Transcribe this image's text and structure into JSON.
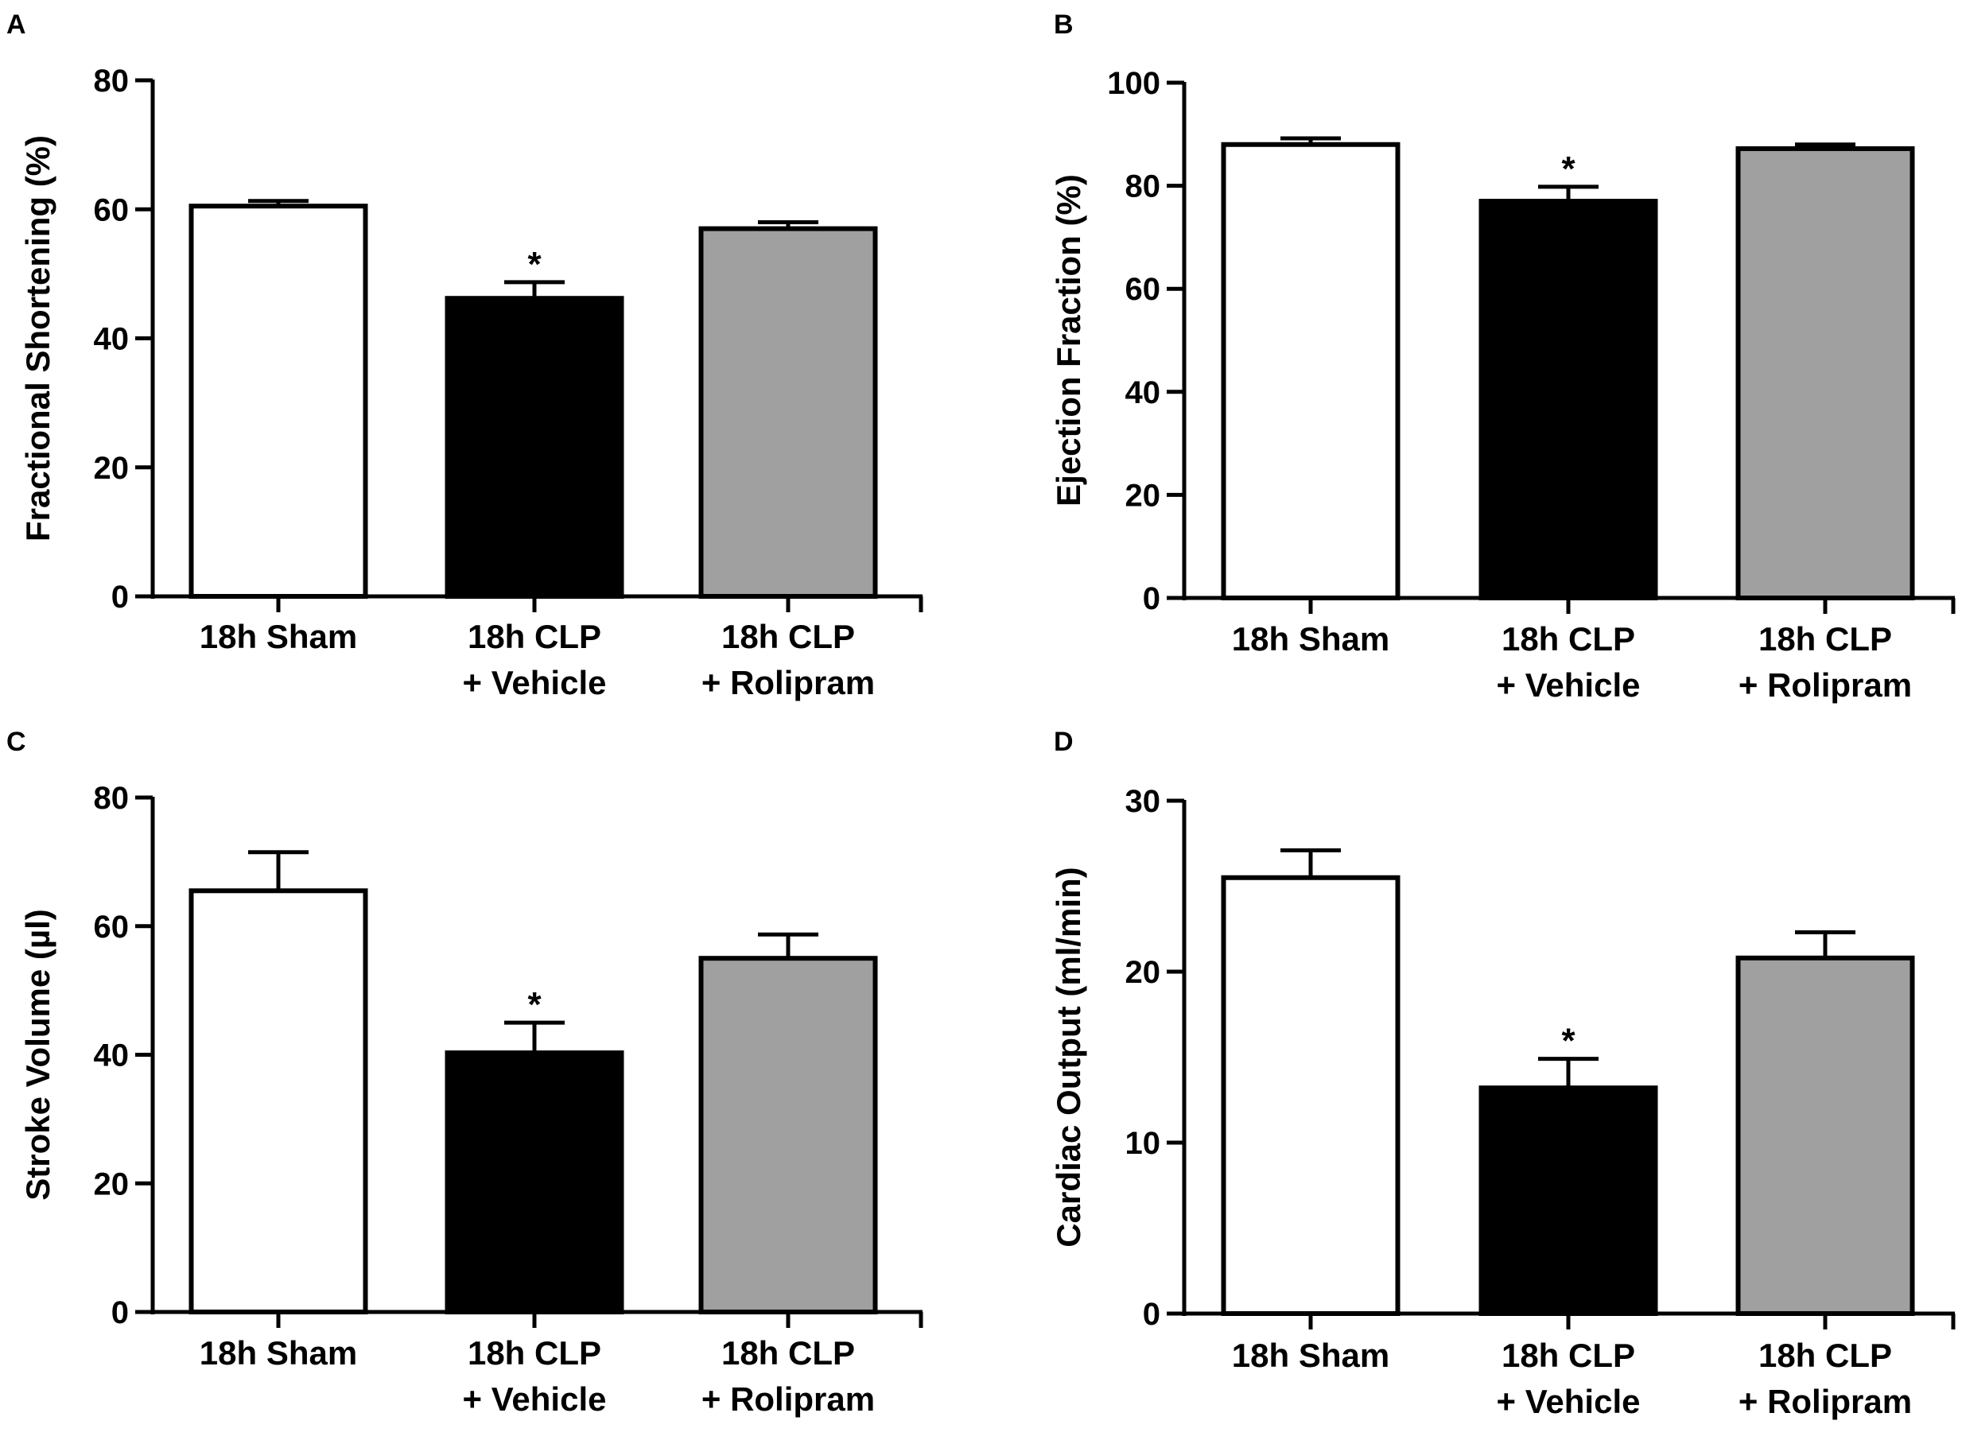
{
  "colors": {
    "sham": "#ffffff",
    "vehicle": "#000000",
    "rolipram": "#a0a0a0",
    "stroke": "#000000"
  },
  "chart_data": [
    {
      "panel": "A",
      "type": "bar",
      "categories": [
        [
          "18h Sham"
        ],
        [
          "18h CLP",
          "+ Vehicle"
        ],
        [
          "18h CLP",
          "+ Rolipram"
        ]
      ],
      "values": [
        60.5,
        46.2,
        57.0
      ],
      "errors": [
        0.8,
        2.5,
        1.0
      ],
      "significance": [
        "",
        "*",
        ""
      ],
      "ylabel": "Fractional Shortening (%)",
      "ylim": [
        0,
        80
      ],
      "yticks": [
        0,
        20,
        40,
        60,
        80
      ]
    },
    {
      "panel": "B",
      "type": "bar",
      "categories": [
        [
          "18h Sham"
        ],
        [
          "18h CLP",
          "+ Vehicle"
        ],
        [
          "18h CLP",
          "+ Rolipram"
        ]
      ],
      "values": [
        88.0,
        77.0,
        87.2
      ],
      "errors": [
        1.2,
        2.8,
        0.8
      ],
      "significance": [
        "",
        "*",
        ""
      ],
      "ylabel": "Ejection Fraction (%)",
      "ylim": [
        0,
        100
      ],
      "yticks": [
        0,
        20,
        40,
        60,
        80,
        100
      ]
    },
    {
      "panel": "C",
      "type": "bar",
      "categories": [
        [
          "18h Sham"
        ],
        [
          "18h CLP",
          "+ Vehicle"
        ],
        [
          "18h CLP",
          "+ Rolipram"
        ]
      ],
      "values": [
        65.5,
        40.3,
        55.0
      ],
      "errors": [
        6.0,
        4.7,
        3.7
      ],
      "significance": [
        "",
        "*",
        ""
      ],
      "ylabel": "Stroke Volume (µl)",
      "ylim": [
        0,
        80
      ],
      "yticks": [
        0,
        20,
        40,
        60,
        80
      ]
    },
    {
      "panel": "D",
      "type": "bar",
      "categories": [
        [
          "18h Sham"
        ],
        [
          "18h CLP",
          "+ Vehicle"
        ],
        [
          "18h CLP",
          "+ Rolipram"
        ]
      ],
      "values": [
        25.5,
        13.2,
        20.8
      ],
      "errors": [
        1.6,
        1.7,
        1.5
      ],
      "significance": [
        "",
        "*",
        ""
      ],
      "ylabel": "Cardiac Output (ml/min)",
      "ylim": [
        0,
        30
      ],
      "yticks": [
        0,
        10,
        20,
        30
      ]
    }
  ]
}
